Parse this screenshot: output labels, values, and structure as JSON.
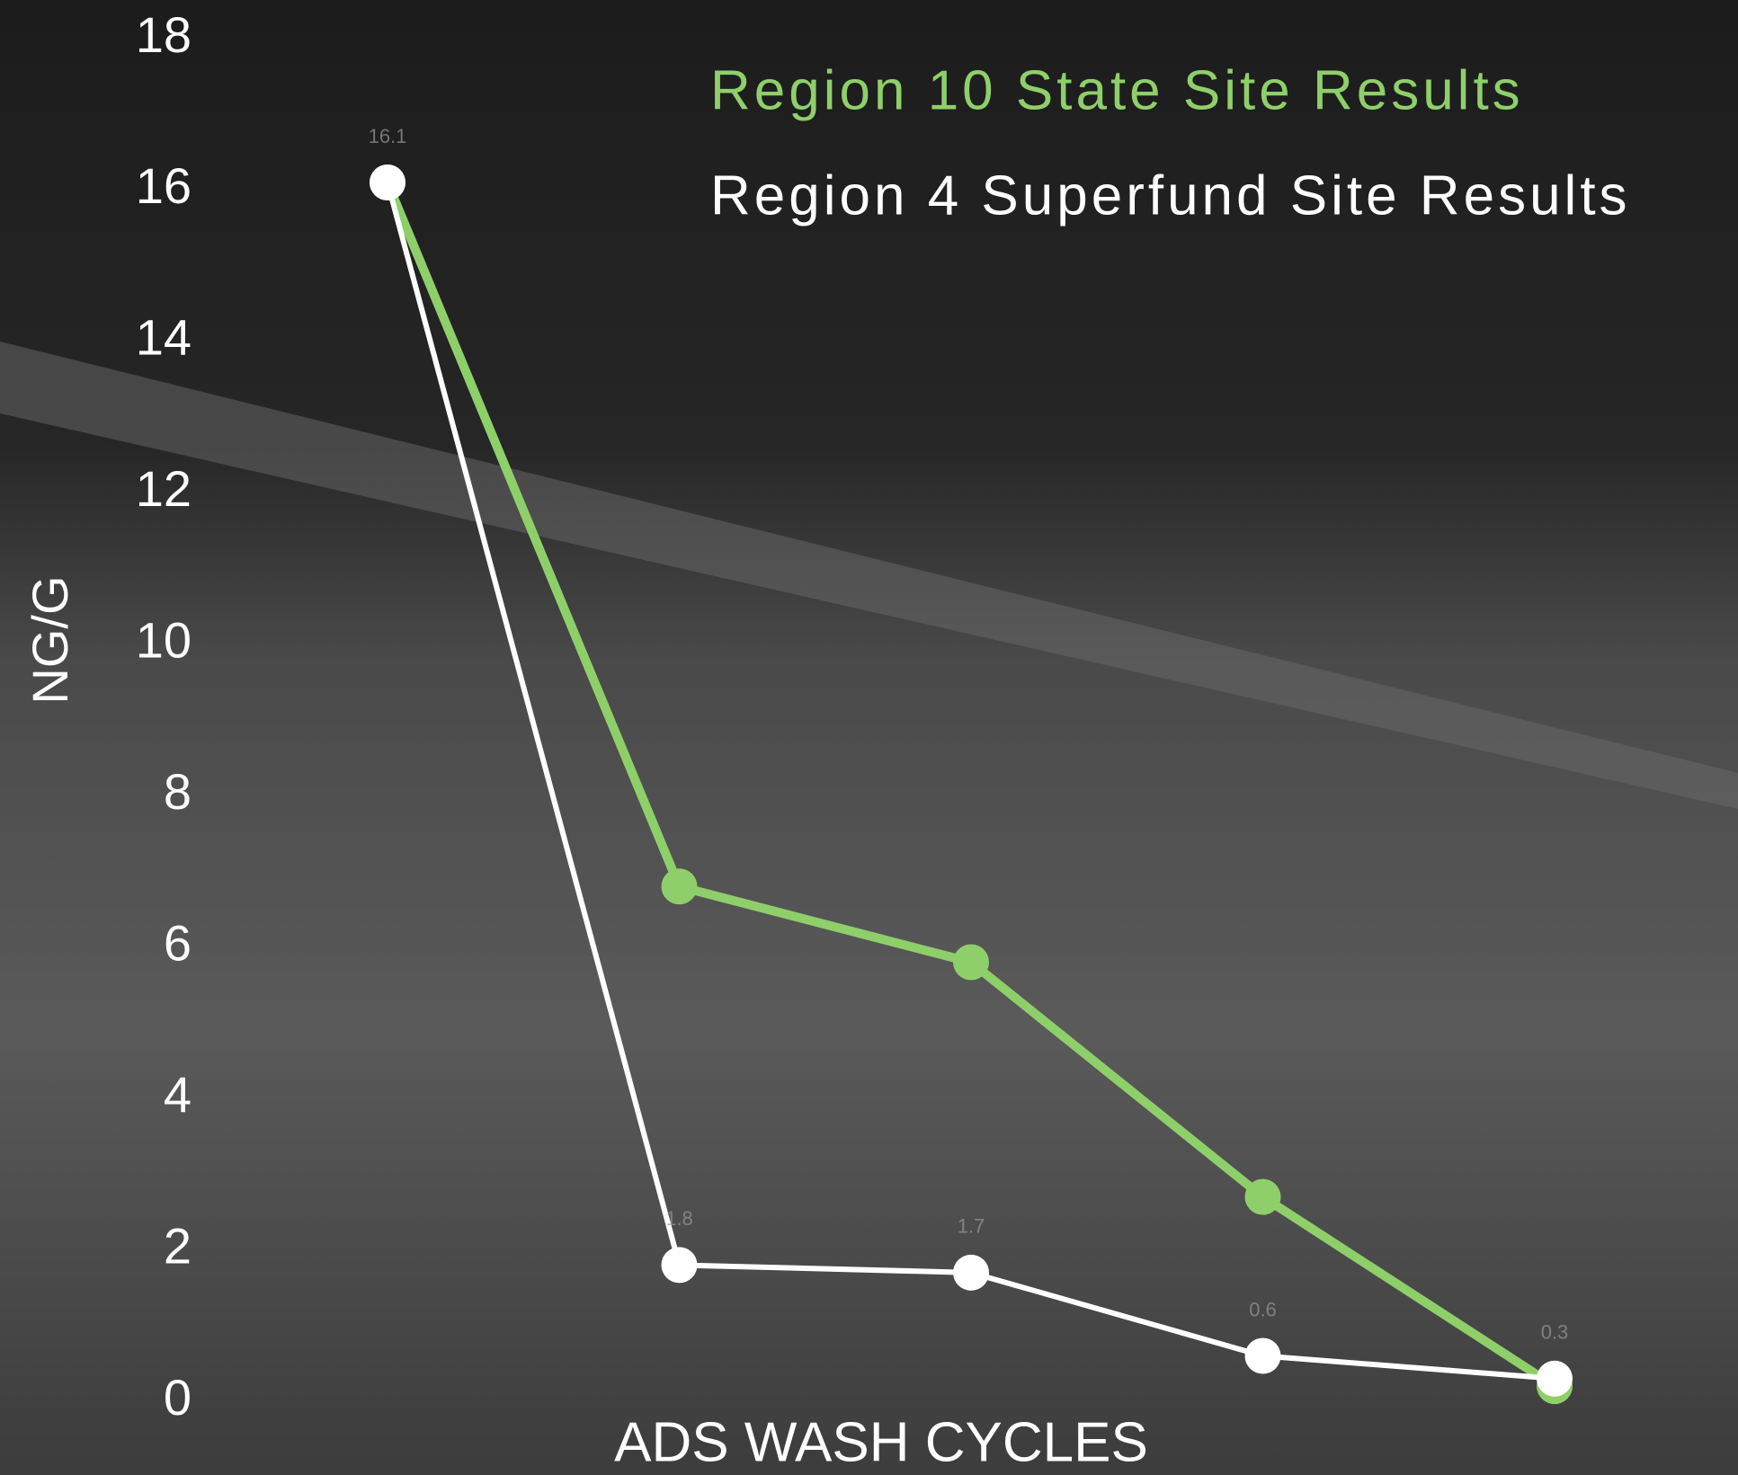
{
  "chart_data": {
    "type": "line",
    "x_label": "ADS WASH CYCLES",
    "y_label": "NG/G",
    "categories": [
      null,
      null,
      null,
      null,
      null
    ],
    "series": [
      {
        "name": "Region 10 State Site Results",
        "color": "#8fcf6a",
        "values": [
          16.1,
          6.8,
          5.8,
          2.7,
          0.2
        ]
      },
      {
        "name": "Region 4 Superfund Site Results",
        "color": "#ffffff",
        "values": [
          16.1,
          1.8,
          1.7,
          0.6,
          0.3
        ]
      }
    ],
    "data_labels_series": 1,
    "ylim": [
      0,
      18
    ],
    "yticks": [
      0,
      2,
      4,
      6,
      8,
      10,
      12,
      14,
      16,
      18
    ],
    "grid": false,
    "legend": "top-right"
  }
}
